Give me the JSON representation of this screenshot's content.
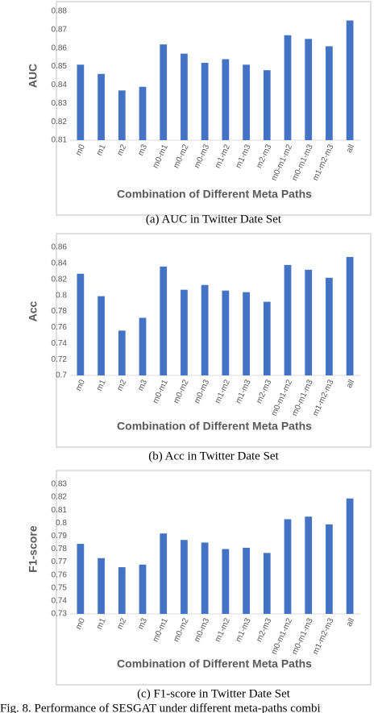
{
  "chart_data": [
    {
      "type": "bar",
      "y_label": "AUC",
      "x_label": "Combination of Different Meta Paths",
      "caption": "(a)  AUC in Twitter Date Set",
      "color": "#4472c4",
      "categories": [
        "m0",
        "m1",
        "m2",
        "m3",
        "m0-m1",
        "m0-m2",
        "m0-m3",
        "m1-m2",
        "m1-m3",
        "m2-m3",
        "m0-m1-m2",
        "m0-m1-m3",
        "m1-m2-m3",
        "all"
      ],
      "values": [
        0.851,
        0.846,
        0.837,
        0.839,
        0.862,
        0.857,
        0.852,
        0.854,
        0.851,
        0.848,
        0.867,
        0.865,
        0.861,
        0.875
      ],
      "ylim": [
        0.81,
        0.88
      ],
      "yticks": [
        0.81,
        0.82,
        0.83,
        0.84,
        0.85,
        0.86,
        0.87,
        0.88
      ]
    },
    {
      "type": "bar",
      "y_label": "Acc",
      "x_label": "Combination of Different Meta Paths",
      "caption": "(b)  Acc in Twitter Date Set",
      "color": "#4472c4",
      "categories": [
        "m0",
        "m1",
        "m2",
        "m3",
        "m0-m1",
        "m0-m2",
        "m0-m3",
        "m1-m2",
        "m1-m3",
        "m2-m3",
        "m0-m1-m2",
        "m0-m1-m3",
        "m1-m2-m3",
        "all"
      ],
      "values": [
        0.827,
        0.799,
        0.756,
        0.772,
        0.836,
        0.807,
        0.813,
        0.806,
        0.804,
        0.792,
        0.838,
        0.832,
        0.822,
        0.848
      ],
      "ylim": [
        0.7,
        0.86
      ],
      "yticks": [
        0.7,
        0.72,
        0.74,
        0.76,
        0.78,
        0.8,
        0.82,
        0.84,
        0.86
      ]
    },
    {
      "type": "bar",
      "y_label": "F1-score",
      "x_label": "Combination of Different Meta Paths",
      "caption": "(c)  F1-score in Twitter Date Set",
      "color": "#4472c4",
      "categories": [
        "m0",
        "m1",
        "m2",
        "m3",
        "m0-m1",
        "m0-m2",
        "m0-m3",
        "m1-m2",
        "m1-m3",
        "m2-m3",
        "m0-m1-m2",
        "m0-m1-m3",
        "m1-m2-m3",
        "all"
      ],
      "values": [
        0.784,
        0.773,
        0.766,
        0.768,
        0.792,
        0.787,
        0.785,
        0.78,
        0.781,
        0.777,
        0.803,
        0.805,
        0.799,
        0.819
      ],
      "ylim": [
        0.73,
        0.83
      ],
      "yticks": [
        0.73,
        0.74,
        0.75,
        0.76,
        0.77,
        0.78,
        0.79,
        0.8,
        0.81,
        0.82,
        0.83
      ]
    }
  ],
  "figure_caption": "Fig. 8.   Performance of SESGAT under different meta-paths combi"
}
